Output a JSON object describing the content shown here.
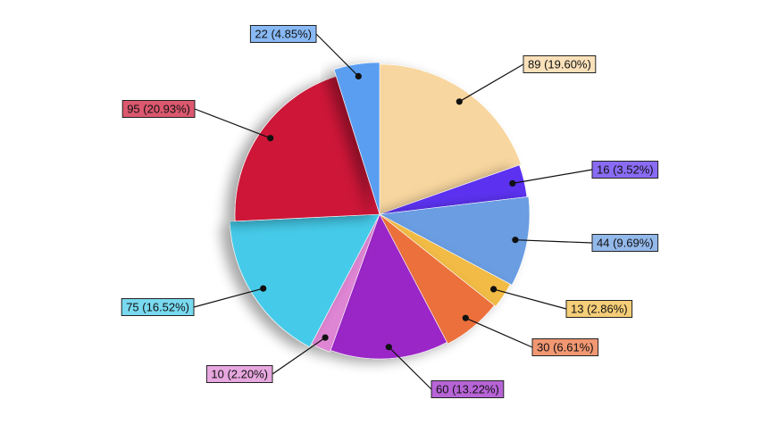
{
  "chart_data": {
    "type": "pie",
    "slices": [
      {
        "value": 89,
        "label": "89 (19.60%)",
        "color": "#f8d69f"
      },
      {
        "value": 16,
        "label": "16 (3.52%)",
        "color": "#5b33f0"
      },
      {
        "value": 44,
        "label": "44 (9.69%)",
        "color": "#6a9de2"
      },
      {
        "value": 13,
        "label": "13 (2.86%)",
        "color": "#f1bb44"
      },
      {
        "value": 30,
        "label": "30 (6.61%)",
        "color": "#ec6f3b"
      },
      {
        "value": 60,
        "label": "60 (13.22%)",
        "color": "#9b28c8"
      },
      {
        "value": 10,
        "label": "10 (2.20%)",
        "color": "#de85d3"
      },
      {
        "value": 75,
        "label": "75 (16.52%)",
        "color": "#44cbe9"
      },
      {
        "value": 95,
        "label": "95 (20.93%)",
        "color": "#cd1838"
      },
      {
        "value": 22,
        "label": "22 (4.85%)",
        "color": "#5a9ef1"
      }
    ]
  }
}
